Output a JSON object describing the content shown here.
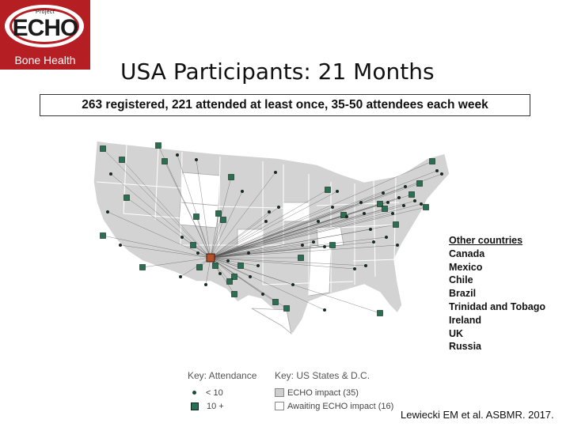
{
  "logo": {
    "top_text": "Project",
    "brand": "ECHO",
    "subtitle": "Bone Health",
    "color": "#b51f24"
  },
  "title": "USA Participants: 21 Months",
  "subtitle": "263 registered, 221 attended at least once, 35-50 attendees each week",
  "map": {
    "hub_color": "#b5512a",
    "site_color": "#2a6f52",
    "line_color": "#555555",
    "state_fill": "#d3d3d3",
    "awaiting_fill": "#ffffff"
  },
  "other_countries": {
    "heading": "Other countries",
    "items": [
      "Canada",
      "Mexico",
      "Chile",
      "Brazil",
      "Trinidad and Tobago",
      "Ireland",
      "UK",
      "Russia"
    ]
  },
  "key_attendance": {
    "title": "Key: Attendance",
    "small": "< 10",
    "large": "10 +"
  },
  "key_states": {
    "title": "Key: US States & D.C.",
    "impact": "ECHO impact (35)",
    "awaiting": "Awaiting ECHO impact (16)"
  },
  "citation": "Lewiecki EM et al. ASBMR. 2017."
}
